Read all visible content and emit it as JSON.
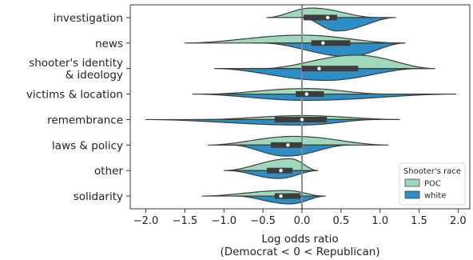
{
  "chart_data": {
    "type": "violin",
    "orientation": "horizontal",
    "split": true,
    "categories": [
      "investigation",
      "news",
      "shooter's identity\n& ideology",
      "victims & location",
      "remembrance",
      "laws & policy",
      "other",
      "solidarity"
    ],
    "xlabel": "Log odds ratio\n(Democrat < 0 < Republican)",
    "ylabel": "",
    "xlim": [
      -2.2,
      2.15
    ],
    "xticks": [
      -2.0,
      -1.5,
      -1.0,
      -0.5,
      0.0,
      0.5,
      1.0,
      1.5,
      2.0
    ],
    "xtick_labels": [
      "−2.0",
      "−1.5",
      "−1.0",
      "−0.5",
      "0.0",
      "0.5",
      "1.0",
      "1.5",
      "2.0"
    ],
    "reference_line_x": 0,
    "legend": {
      "title": "Shooter's race",
      "position": "lower-right",
      "entries": [
        "POC",
        "white"
      ]
    },
    "series": [
      {
        "name": "POC",
        "color": "#9fd9bb",
        "side": "upper"
      },
      {
        "name": "white",
        "color": "#2c8ec4",
        "side": "lower"
      }
    ],
    "violins": [
      {
        "category": "investigation",
        "median": 0.33,
        "q1": 0.02,
        "q3": 0.45,
        "POC": {
          "range": [
            -0.45,
            0.95
          ],
          "peak": 0.12,
          "width": 0.6
        },
        "white": {
          "range": [
            0.0,
            1.2
          ],
          "peak": 0.45,
          "width": 0.85
        }
      },
      {
        "category": "news",
        "median": 0.27,
        "q1": 0.12,
        "q3": 0.62,
        "POC": {
          "range": [
            -1.5,
            1.25
          ],
          "peak": 0.0,
          "width": 0.5
        },
        "white": {
          "range": [
            -0.5,
            1.32
          ],
          "peak": 0.6,
          "width": 0.85
        }
      },
      {
        "category": "shooter's identity\n& ideology",
        "median": 0.22,
        "q1": 0.0,
        "q3": 0.72,
        "POC": {
          "range": [
            -0.5,
            1.7
          ],
          "peak": 0.7,
          "width": 0.85
        },
        "white": {
          "range": [
            -1.12,
            1.5
          ],
          "peak": 0.3,
          "width": 0.75
        }
      },
      {
        "category": "victims & location",
        "median": 0.06,
        "q1": -0.08,
        "q3": 0.28,
        "POC": {
          "range": [
            -1.2,
            1.05
          ],
          "peak": 0.05,
          "width": 0.35
        },
        "white": {
          "range": [
            -1.4,
            1.97
          ],
          "peak": 0.05,
          "width": 0.4
        }
      },
      {
        "category": "remembrance",
        "median": 0.0,
        "q1": -0.35,
        "q3": 0.32,
        "POC": {
          "range": [
            -1.25,
            1.25
          ],
          "peak": 0.0,
          "width": 0.25
        },
        "white": {
          "range": [
            -2.0,
            0.95
          ],
          "peak": 0.0,
          "width": 0.35
        }
      },
      {
        "category": "laws & policy",
        "median": -0.18,
        "q1": -0.4,
        "q3": 0.0,
        "POC": {
          "range": [
            -1.2,
            1.1
          ],
          "peak": -0.1,
          "width": 0.55
        },
        "white": {
          "range": [
            -0.9,
            0.6
          ],
          "peak": -0.2,
          "width": 0.7
        }
      },
      {
        "category": "other",
        "median": -0.27,
        "q1": -0.45,
        "q3": -0.12,
        "POC": {
          "range": [
            -1.0,
            0.2
          ],
          "peak": -0.15,
          "width": 0.75
        },
        "white": {
          "range": [
            -0.95,
            0.2
          ],
          "peak": -0.3,
          "width": 0.5
        }
      },
      {
        "category": "solidarity",
        "median": -0.27,
        "q1": -0.35,
        "q3": -0.02,
        "POC": {
          "range": [
            -1.28,
            0.28
          ],
          "peak": -0.2,
          "width": 0.35
        },
        "white": {
          "range": [
            -0.85,
            0.3
          ],
          "peak": -0.15,
          "width": 0.5
        }
      }
    ]
  }
}
